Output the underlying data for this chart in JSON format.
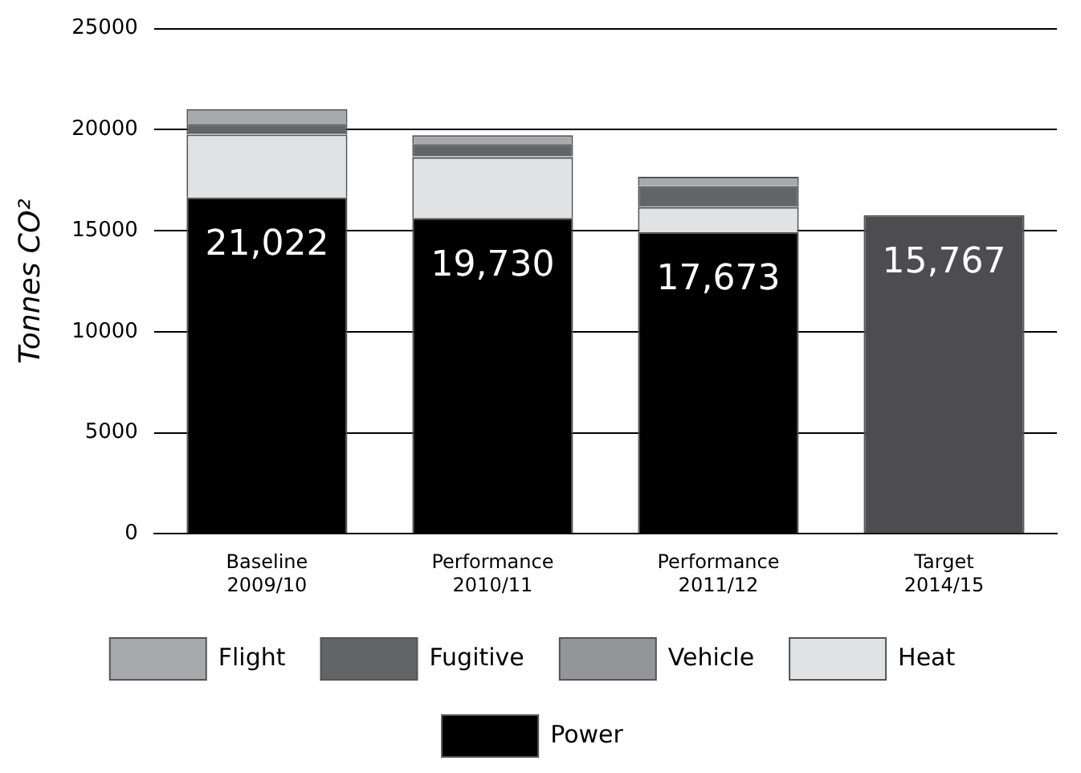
{
  "chart_data": {
    "type": "bar",
    "stacked": true,
    "ylabel": "Tonnes CO²",
    "categories": [
      "Baseline 2009/10",
      "Performance 2010/11",
      "Performance 2011/12",
      "Target 2014/15"
    ],
    "series": [
      {
        "name": "Power",
        "color": "#000000",
        "values": [
          16640,
          15630,
          14940,
          null
        ]
      },
      {
        "name": "Heat",
        "color": "#e1e2e3",
        "values": [
          3120,
          3000,
          1230,
          null
        ]
      },
      {
        "name": "Vehicle",
        "color": "#939598",
        "values": [
          100,
          50,
          70,
          null
        ]
      },
      {
        "name": "Fugitive",
        "color": "#636466",
        "values": [
          420,
          610,
          960,
          null
        ]
      },
      {
        "name": "Flight",
        "color": "#a7a9ac",
        "values": [
          740,
          440,
          470,
          null
        ]
      },
      {
        "color": "#4d4d4f",
        "values": [
          null,
          null,
          null,
          15770
        ]
      }
    ],
    "totals": [
      "21,022",
      "19,730",
      "17,673",
      "15,767"
    ],
    "ylim": [
      0,
      25000
    ],
    "yticks": [
      0,
      5000,
      10000,
      15000,
      20000,
      25000
    ],
    "grid": "y",
    "legend": "bottom"
  }
}
